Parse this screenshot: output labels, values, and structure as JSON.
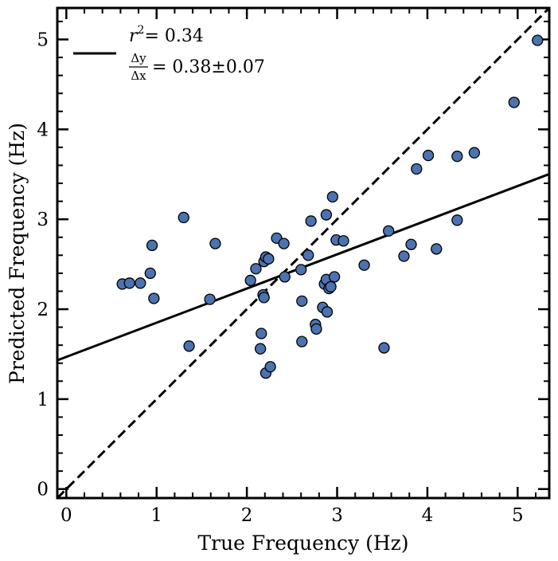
{
  "chart_data": {
    "type": "scatter",
    "xlabel": "True Frequency (Hz)",
    "ylabel": "Predicted Frequency (Hz)",
    "xlim": [
      -0.1,
      5.35
    ],
    "ylim": [
      -0.1,
      5.35
    ],
    "xticks": [
      "0",
      "1",
      "2",
      "3",
      "4",
      "5"
    ],
    "yticks": [
      "0",
      "1",
      "2",
      "3",
      "4",
      "5"
    ],
    "grid": false,
    "legend_position": "top-left",
    "legend": {
      "r2_label": "r",
      "r2_exponent": "2",
      "r2_value": "=  0.34",
      "slope_num": "Δy",
      "slope_den": "Δx",
      "slope_value": "= 0.38±0.07"
    },
    "fit_line": {
      "intercept": 1.47,
      "slope": 0.38
    },
    "identity_line": {
      "slope": 1,
      "intercept": 0
    },
    "marker_color": "#4c72b0",
    "points": [
      [
        0.62,
        2.28
      ],
      [
        0.7,
        2.29
      ],
      [
        0.82,
        2.29
      ],
      [
        0.93,
        2.4
      ],
      [
        0.95,
        2.71
      ],
      [
        0.97,
        2.12
      ],
      [
        1.3,
        3.02
      ],
      [
        1.36,
        1.59
      ],
      [
        1.59,
        2.11
      ],
      [
        1.65,
        2.73
      ],
      [
        2.04,
        2.32
      ],
      [
        2.1,
        2.45
      ],
      [
        2.15,
        1.56
      ],
      [
        2.16,
        1.73
      ],
      [
        2.18,
        2.16
      ],
      [
        2.19,
        2.13
      ],
      [
        2.19,
        2.53
      ],
      [
        2.21,
        2.58
      ],
      [
        2.21,
        1.29
      ],
      [
        2.24,
        2.56
      ],
      [
        2.26,
        1.36
      ],
      [
        2.33,
        2.79
      ],
      [
        2.41,
        2.73
      ],
      [
        2.42,
        2.36
      ],
      [
        2.6,
        2.44
      ],
      [
        2.61,
        1.64
      ],
      [
        2.61,
        2.09
      ],
      [
        2.68,
        2.6
      ],
      [
        2.71,
        2.98
      ],
      [
        2.76,
        1.83
      ],
      [
        2.77,
        1.78
      ],
      [
        2.84,
        2.02
      ],
      [
        2.86,
        2.28
      ],
      [
        2.88,
        2.33
      ],
      [
        2.88,
        3.05
      ],
      [
        2.89,
        1.97
      ],
      [
        2.91,
        2.23
      ],
      [
        2.93,
        2.25
      ],
      [
        2.95,
        3.25
      ],
      [
        2.97,
        2.36
      ],
      [
        2.99,
        2.77
      ],
      [
        3.07,
        2.76
      ],
      [
        3.3,
        2.49
      ],
      [
        3.52,
        1.57
      ],
      [
        3.57,
        2.87
      ],
      [
        3.74,
        2.59
      ],
      [
        3.82,
        2.72
      ],
      [
        3.88,
        3.56
      ],
      [
        4.01,
        3.71
      ],
      [
        4.1,
        2.67
      ],
      [
        4.33,
        3.7
      ],
      [
        4.33,
        2.99
      ],
      [
        4.52,
        3.74
      ],
      [
        4.96,
        4.3
      ],
      [
        5.22,
        4.99
      ]
    ]
  }
}
